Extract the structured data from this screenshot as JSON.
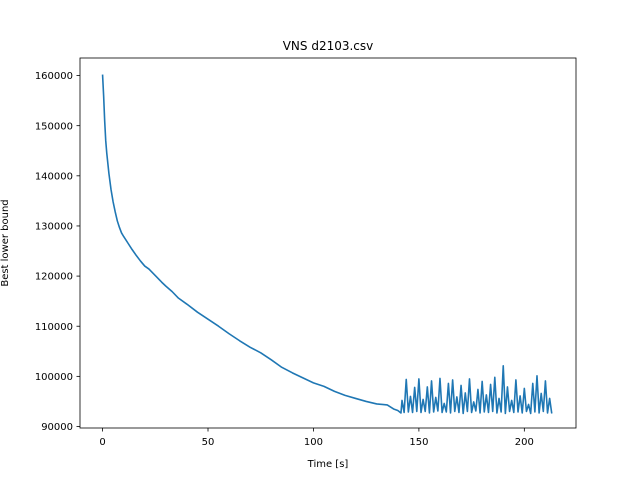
{
  "chart_data": {
    "type": "line",
    "title": "VNS d2103.csv",
    "xlabel": "Time [s]",
    "ylabel": "Best lower bound",
    "xlim": [
      -10.7,
      224.5
    ],
    "ylim": [
      89700,
      163500
    ],
    "xticks": [
      0,
      50,
      100,
      150,
      200
    ],
    "yticks": [
      90000,
      100000,
      110000,
      120000,
      130000,
      140000,
      150000,
      160000
    ],
    "xtick_labels": [
      "0",
      "50",
      "100",
      "150",
      "200"
    ],
    "ytick_labels": [
      "90000",
      "100000",
      "110000",
      "120000",
      "130000",
      "140000",
      "150000",
      "160000"
    ],
    "grid": false,
    "legend": "none",
    "series": [
      {
        "color": "#1f77b4",
        "x": [
          0,
          0.5,
          1,
          1.5,
          2,
          3,
          4,
          5,
          6,
          7,
          8,
          9,
          10,
          12,
          14,
          16,
          18,
          20,
          22,
          25,
          28,
          30,
          33,
          36,
          40,
          45,
          50,
          55,
          60,
          65,
          70,
          75,
          80,
          85,
          90,
          95,
          100,
          105,
          110,
          115,
          120,
          125,
          130,
          135,
          138,
          140,
          141.5,
          142,
          143,
          144,
          145,
          146,
          147,
          148,
          149,
          150,
          151,
          152,
          153,
          154,
          155,
          156,
          157,
          158,
          159,
          160,
          161,
          162,
          163,
          164,
          165,
          166,
          167,
          168,
          169,
          170,
          171,
          172,
          173,
          174,
          175,
          176,
          177,
          178,
          179,
          180,
          181,
          182,
          183,
          184,
          185,
          186,
          187,
          188,
          189,
          190,
          191,
          192,
          193,
          194,
          195,
          196,
          197,
          198,
          199,
          200,
          201,
          202,
          203,
          204,
          205,
          206,
          207,
          208,
          209,
          210,
          211,
          212,
          213
        ],
        "y": [
          160200,
          156000,
          151000,
          147000,
          144500,
          140500,
          137300,
          134800,
          132800,
          131000,
          129700,
          128600,
          127900,
          126600,
          125300,
          124100,
          123000,
          122000,
          121400,
          120100,
          118800,
          118000,
          116900,
          115600,
          114400,
          112800,
          111400,
          110000,
          108500,
          107100,
          105800,
          104700,
          103300,
          101800,
          100700,
          99700,
          98700,
          98000,
          97000,
          96200,
          95600,
          95000,
          94500,
          94300,
          93500,
          93200,
          92700,
          95200,
          92800,
          99400,
          92900,
          96000,
          92800,
          97800,
          93000,
          99500,
          92800,
          95400,
          93000,
          97900,
          92700,
          99100,
          92900,
          95800,
          93100,
          99600,
          92800,
          94600,
          92900,
          98600,
          92700,
          99300,
          93000,
          95900,
          92800,
          98200,
          92600,
          96700,
          93000,
          99500,
          92800,
          94900,
          93100,
          97400,
          92700,
          99000,
          92900,
          96300,
          92800,
          98400,
          93000,
          99800,
          92700,
          95600,
          92900,
          102100,
          92600,
          97900,
          93000,
          95200,
          92800,
          99300,
          92900,
          96100,
          92700,
          97600,
          93000,
          94400,
          92600,
          98600,
          92900,
          100100,
          92700,
          96600,
          93000,
          99100,
          92700,
          95600,
          92600
        ]
      }
    ]
  }
}
